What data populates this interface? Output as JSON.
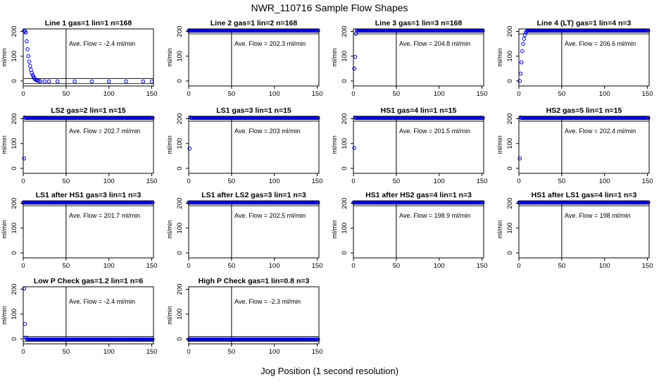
{
  "chart_data": {
    "type": "scatter",
    "title": "NWR_110716  Sample Flow Shapes",
    "xlabel": "Jog Position (1 second resolution)",
    "ylabel": "ml/min",
    "xlim": [
      0,
      152
    ],
    "ylim": [
      -20,
      210
    ],
    "x_ticks": [
      0,
      50,
      100,
      150
    ],
    "y_ticks": [
      0,
      100,
      200
    ],
    "vline_x": 50,
    "point_color": "#0000cc",
    "panels": [
      {
        "title": "Line 1 gas=1 lin=1 n=168",
        "ave_flow": "Ave. Flow =  -2.4  ml/min",
        "ref_lines": [
          10,
          -10
        ],
        "pattern": "decay",
        "points": [
          [
            1,
            203
          ],
          [
            2,
            200
          ],
          [
            3,
            195
          ],
          [
            4,
            160
          ],
          [
            5,
            128
          ],
          [
            6,
            100
          ],
          [
            7,
            78
          ],
          [
            8,
            60
          ],
          [
            9,
            45
          ],
          [
            10,
            33
          ],
          [
            11,
            24
          ],
          [
            12,
            17
          ],
          [
            13,
            11
          ],
          [
            14,
            7
          ],
          [
            15,
            4
          ],
          [
            16,
            2
          ],
          [
            18,
            0
          ],
          [
            20,
            -1
          ],
          [
            25,
            -2
          ],
          [
            30,
            -2
          ],
          [
            40,
            -2
          ],
          [
            60,
            -2
          ],
          [
            80,
            -2
          ],
          [
            100,
            -2
          ],
          [
            120,
            -2
          ],
          [
            140,
            -2
          ],
          [
            150,
            -2
          ]
        ]
      },
      {
        "title": "Line 2 gas=1 lin=2 n=168",
        "ave_flow": "Ave. Flow =  202.3  ml/min",
        "ref_lines": [
          190
        ],
        "pattern": "flat200",
        "points": []
      },
      {
        "title": "Line 3 gas=1 lin=3 n=168",
        "ave_flow": "Ave. Flow =  204.8  ml/min",
        "ref_lines": [
          190
        ],
        "pattern": "flat200",
        "points": [
          [
            1,
            50
          ],
          [
            2,
            97
          ],
          [
            3,
            190
          ]
        ]
      },
      {
        "title": "Line 4 (LT) gas=1 lin=4 n=3",
        "ave_flow": "Ave. Flow =  206.6  ml/min",
        "ref_lines": [
          190
        ],
        "pattern": "flat200",
        "points": [
          [
            1,
            0
          ],
          [
            2,
            30
          ],
          [
            3,
            75
          ],
          [
            4,
            120
          ],
          [
            5,
            150
          ],
          [
            6,
            170
          ],
          [
            7,
            185
          ],
          [
            8,
            195
          ],
          [
            9,
            200
          ],
          [
            10,
            203
          ]
        ]
      },
      {
        "title": "LS2 gas=2 lin=1 n=15",
        "ave_flow": "Ave. Flow =  202.7  ml/min",
        "ref_lines": [
          190
        ],
        "pattern": "flat200",
        "points": [
          [
            1,
            40
          ],
          [
            2,
            205
          ]
        ]
      },
      {
        "title": "LS1 gas=3 lin=1 n=15",
        "ave_flow": "Ave. Flow =  203  ml/min",
        "ref_lines": [
          190
        ],
        "pattern": "flat200",
        "points": [
          [
            1,
            80
          ],
          [
            2,
            205
          ]
        ]
      },
      {
        "title": "HS1 gas=4 lin=1 n=15",
        "ave_flow": "Ave. Flow =  201.5  ml/min",
        "ref_lines": [
          190
        ],
        "pattern": "flat200",
        "points": [
          [
            1,
            82
          ],
          [
            2,
            205
          ]
        ]
      },
      {
        "title": "HS2 gas=5 lin=1 n=15",
        "ave_flow": "Ave. Flow =  202.4  ml/min",
        "ref_lines": [
          190
        ],
        "pattern": "flat200",
        "points": [
          [
            1,
            40
          ],
          [
            2,
            205
          ]
        ]
      },
      {
        "title": "LS1 after HS1 gas=3 lin=1 n=3",
        "ave_flow": "Ave. Flow =  201.7  ml/min",
        "ref_lines": [
          190
        ],
        "pattern": "flat200",
        "points": []
      },
      {
        "title": "LS1 after LS2 gas=3 lin=1 n=3",
        "ave_flow": "Ave. Flow =  202.5  ml/min",
        "ref_lines": [
          190
        ],
        "pattern": "flat200",
        "points": []
      },
      {
        "title": "HS1 after HS2 gas=4 lin=1 n=3",
        "ave_flow": "Ave. Flow =  198.9  ml/min",
        "ref_lines": [
          190
        ],
        "pattern": "flat200",
        "points": []
      },
      {
        "title": "HS1 after LS1 gas=4 lin=1 n=3",
        "ave_flow": "Ave. Flow =  198  ml/min",
        "ref_lines": [
          190
        ],
        "pattern": "flat200",
        "points": []
      },
      {
        "title": "Low P Check gas=1.2 lin=1 n=6",
        "ave_flow": "Ave. Flow =  -2.4  ml/min",
        "ref_lines": [
          10,
          -10
        ],
        "pattern": "flat0",
        "points": [
          [
            1,
            203
          ],
          [
            2,
            60
          ],
          [
            3,
            5
          ],
          [
            4,
            0
          ]
        ]
      },
      {
        "title": "High P Check gas=1 lin=0.8 n=3",
        "ave_flow": "Ave. Flow =  -2.3  ml/min",
        "ref_lines": [
          10,
          -10
        ],
        "pattern": "flat0",
        "points": []
      }
    ]
  }
}
